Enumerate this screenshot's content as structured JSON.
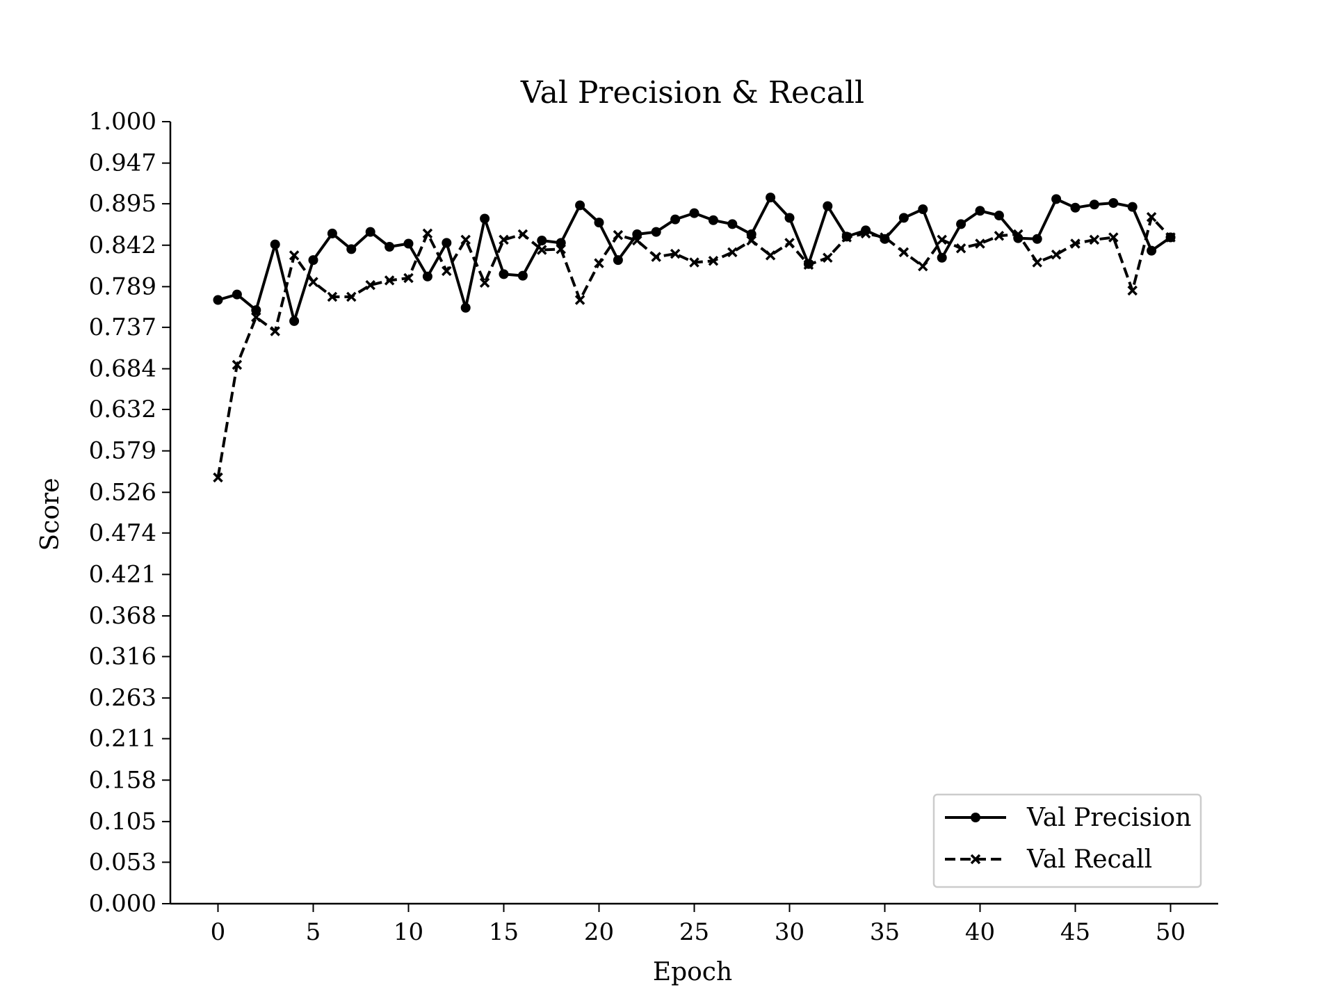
{
  "chart_data": {
    "type": "line",
    "title": "Val Precision & Recall",
    "xlabel": "Epoch",
    "ylabel": "Score",
    "xlim": [
      -2.5,
      52.5
    ],
    "ylim": [
      0,
      1
    ],
    "xticks": [
      0,
      5,
      10,
      15,
      20,
      25,
      30,
      35,
      40,
      45,
      50
    ],
    "yticks": [
      "0.000",
      "0.053",
      "0.105",
      "0.158",
      "0.211",
      "0.263",
      "0.316",
      "0.368",
      "0.421",
      "0.474",
      "0.526",
      "0.579",
      "0.632",
      "0.684",
      "0.737",
      "0.789",
      "0.842",
      "0.895",
      "0.947",
      "1.000"
    ],
    "grid": false,
    "legend_position": "lower-right",
    "x": [
      0,
      1,
      2,
      3,
      4,
      5,
      6,
      7,
      8,
      9,
      10,
      11,
      12,
      13,
      14,
      15,
      16,
      17,
      18,
      19,
      20,
      21,
      22,
      23,
      24,
      25,
      26,
      27,
      28,
      29,
      30,
      31,
      32,
      33,
      34,
      35,
      36,
      37,
      38,
      39,
      40,
      41,
      42,
      43,
      44,
      45,
      46,
      47,
      48,
      49,
      50
    ],
    "series": [
      {
        "name": "Val Precision",
        "line_style": "solid",
        "marker": "circle",
        "color": "#000000",
        "values": [
          0.772,
          0.779,
          0.759,
          0.843,
          0.745,
          0.823,
          0.857,
          0.837,
          0.859,
          0.84,
          0.844,
          0.802,
          0.845,
          0.762,
          0.876,
          0.805,
          0.803,
          0.848,
          0.845,
          0.893,
          0.871,
          0.823,
          0.856,
          0.859,
          0.875,
          0.883,
          0.874,
          0.869,
          0.856,
          0.903,
          0.877,
          0.818,
          0.892,
          0.853,
          0.861,
          0.85,
          0.877,
          0.888,
          0.826,
          0.869,
          0.886,
          0.88,
          0.851,
          0.85,
          0.901,
          0.89,
          0.894,
          0.896,
          0.891,
          0.835,
          0.852
        ]
      },
      {
        "name": "Val Recall",
        "line_style": "dashed",
        "marker": "x",
        "color": "#000000",
        "values": [
          0.545,
          0.689,
          0.75,
          0.732,
          0.829,
          0.795,
          0.776,
          0.776,
          0.791,
          0.797,
          0.8,
          0.857,
          0.809,
          0.849,
          0.794,
          0.849,
          0.856,
          0.836,
          0.837,
          0.772,
          0.819,
          0.855,
          0.848,
          0.827,
          0.831,
          0.82,
          0.822,
          0.833,
          0.848,
          0.829,
          0.845,
          0.817,
          0.826,
          0.852,
          0.857,
          0.852,
          0.833,
          0.815,
          0.849,
          0.838,
          0.844,
          0.854,
          0.856,
          0.82,
          0.83,
          0.844,
          0.849,
          0.852,
          0.784,
          0.878,
          0.852
        ]
      }
    ]
  }
}
